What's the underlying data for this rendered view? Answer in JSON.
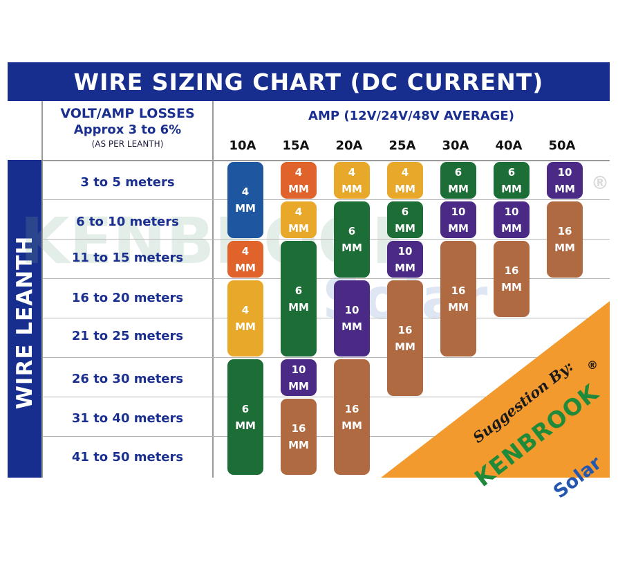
{
  "title": "WIRE SIZING CHART (DC CURRENT)",
  "side_label": "WIRE LEANTH",
  "header_left": {
    "line1": "VOLT/AMP LOSSES",
    "line2": "Approx 3 to 6%",
    "line3": "(AS PER LEANTH)"
  },
  "amp_title": "AMP (12V/24V/48V AVERAGE)",
  "watermark": {
    "brand": "KENBROOK",
    "sub": "Solar",
    "reg": "®"
  },
  "promo": {
    "suggestion": "Suggestion By:",
    "logo_main": "KENBROOK",
    "logo_sub": "Solar",
    "reg": "®",
    "color": "#f29a2e"
  },
  "colors": {
    "header_blue": "#182e8e",
    "4 MM": "#e8a82a",
    "4 MM (alt)": "#e0632c",
    "6 MM": "#1c6d36",
    "10 MM": "#4b2a86",
    "16 MM": "#b06a42",
    "4 MM (10A first)": "#1e56a0"
  },
  "chart_data": {
    "type": "table",
    "columns": [
      "10A",
      "15A",
      "20A",
      "25A",
      "30A",
      "40A",
      "50A"
    ],
    "rows": [
      "3 to 5 meters",
      "6 to 10 meters",
      "11 to 15 meters",
      "16 to 20 meters",
      "21 to 25 meters",
      "26 to 30 meters",
      "31 to 40 meters",
      "41 to 50 meters"
    ],
    "cells": [
      {
        "col": 0,
        "row_start": 0,
        "row_end": 1,
        "line1": "4",
        "line2": "MM",
        "color": "#1e56a0"
      },
      {
        "col": 0,
        "row_start": 2,
        "row_end": 2,
        "line1": "4",
        "line2": "MM",
        "color": "#e0632c"
      },
      {
        "col": 0,
        "row_start": 3,
        "row_end": 4,
        "line1": "4",
        "line2": "MM",
        "color": "#e8a82a"
      },
      {
        "col": 0,
        "row_start": 5,
        "row_end": 7,
        "line1": "6",
        "line2": "MM",
        "color": "#1c6d36"
      },
      {
        "col": 1,
        "row_start": 0,
        "row_end": 0,
        "line1": "4",
        "line2": "MM",
        "color": "#e0632c"
      },
      {
        "col": 1,
        "row_start": 1,
        "row_end": 1,
        "line1": "4",
        "line2": "MM",
        "color": "#e8a82a"
      },
      {
        "col": 1,
        "row_start": 2,
        "row_end": 4,
        "line1": "6",
        "line2": "MM",
        "color": "#1c6d36"
      },
      {
        "col": 1,
        "row_start": 5,
        "row_end": 5,
        "line1": "10",
        "line2": "MM",
        "color": "#4b2a86"
      },
      {
        "col": 1,
        "row_start": 6,
        "row_end": 7,
        "line1": "16",
        "line2": "MM",
        "color": "#b06a42"
      },
      {
        "col": 2,
        "row_start": 0,
        "row_end": 0,
        "line1": "4",
        "line2": "MM",
        "color": "#e8a82a"
      },
      {
        "col": 2,
        "row_start": 1,
        "row_end": 2,
        "line1": "6",
        "line2": "MM",
        "color": "#1c6d36"
      },
      {
        "col": 2,
        "row_start": 3,
        "row_end": 4,
        "line1": "10",
        "line2": "MM",
        "color": "#4b2a86"
      },
      {
        "col": 2,
        "row_start": 5,
        "row_end": 7,
        "line1": "16",
        "line2": "MM",
        "color": "#b06a42"
      },
      {
        "col": 3,
        "row_start": 0,
        "row_end": 0,
        "line1": "4",
        "line2": "MM",
        "color": "#e8a82a"
      },
      {
        "col": 3,
        "row_start": 1,
        "row_end": 1,
        "line1": "6",
        "line2": "MM",
        "color": "#1c6d36"
      },
      {
        "col": 3,
        "row_start": 2,
        "row_end": 2,
        "line1": "10",
        "line2": "MM",
        "color": "#4b2a86"
      },
      {
        "col": 3,
        "row_start": 3,
        "row_end": 5,
        "line1": "16",
        "line2": "MM",
        "color": "#b06a42"
      },
      {
        "col": 4,
        "row_start": 0,
        "row_end": 0,
        "line1": "6",
        "line2": "MM",
        "color": "#1c6d36"
      },
      {
        "col": 4,
        "row_start": 1,
        "row_end": 1,
        "line1": "10",
        "line2": "MM",
        "color": "#4b2a86"
      },
      {
        "col": 4,
        "row_start": 2,
        "row_end": 4,
        "line1": "16",
        "line2": "MM",
        "color": "#b06a42"
      },
      {
        "col": 5,
        "row_start": 0,
        "row_end": 0,
        "line1": "6",
        "line2": "MM",
        "color": "#1c6d36"
      },
      {
        "col": 5,
        "row_start": 1,
        "row_end": 1,
        "line1": "10",
        "line2": "MM",
        "color": "#4b2a86"
      },
      {
        "col": 5,
        "row_start": 2,
        "row_end": 3,
        "line1": "16",
        "line2": "MM",
        "color": "#b06a42"
      },
      {
        "col": 6,
        "row_start": 0,
        "row_end": 0,
        "line1": "10",
        "line2": "MM",
        "color": "#4b2a86"
      },
      {
        "col": 6,
        "row_start": 1,
        "row_end": 2,
        "line1": "16",
        "line2": "MM",
        "color": "#b06a42"
      }
    ]
  }
}
